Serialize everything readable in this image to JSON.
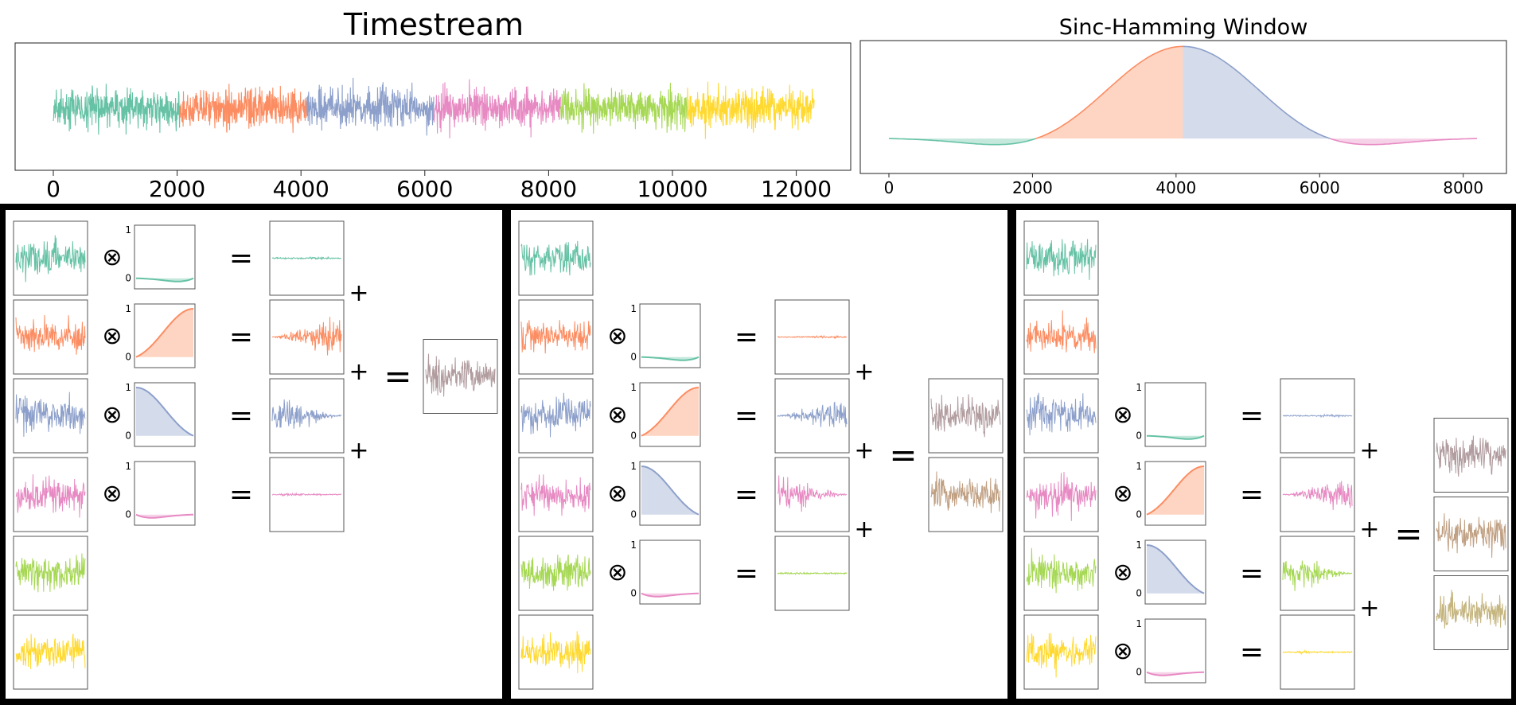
{
  "colors": {
    "segments": [
      "#66c2a5",
      "#fc8d62",
      "#8da0cb",
      "#e78ac3",
      "#a6d854",
      "#ffd92f"
    ],
    "sums": [
      "#b19c9f",
      "#c0a083",
      "#c5b57f"
    ],
    "frame": "#000000",
    "axis": "#333333"
  },
  "symbols": {
    "multiply": "⊗",
    "equals": "=",
    "plus": "+"
  },
  "chart_data": [
    {
      "type": "line",
      "title": "Timestream",
      "xlabel": "",
      "ylabel": "",
      "xlim": [
        0,
        12288
      ],
      "xticks": [
        "0",
        "2000",
        "4000",
        "6000",
        "8000",
        "10000",
        "12000"
      ],
      "xtick_values": [
        0,
        2000,
        4000,
        6000,
        8000,
        10000,
        12000
      ],
      "series": [
        {
          "x_range": [
            0,
            2048
          ],
          "amplitude": 1.0
        },
        {
          "x_range": [
            2048,
            4096
          ],
          "amplitude": 1.0
        },
        {
          "x_range": [
            4096,
            6144
          ],
          "amplitude": 1.0
        },
        {
          "x_range": [
            6144,
            8192
          ],
          "amplitude": 1.0
        },
        {
          "x_range": [
            8192,
            10240
          ],
          "amplitude": 1.0
        },
        {
          "x_range": [
            10240,
            12288
          ],
          "amplitude": 1.0
        }
      ]
    },
    {
      "type": "area",
      "title": "Sinc-Hamming Window",
      "xlabel": "",
      "ylabel": "",
      "xlim": [
        0,
        8192
      ],
      "ylim": [
        -0.12,
        1.0
      ],
      "xticks": [
        "0",
        "2000",
        "4000",
        "6000",
        "8000"
      ],
      "xtick_values": [
        0,
        2000,
        4000,
        6000,
        8000
      ],
      "quarters": [
        {
          "x_range": [
            0,
            2048
          ],
          "segment": 0
        },
        {
          "x_range": [
            2048,
            4096
          ],
          "segment": 1
        },
        {
          "x_range": [
            4096,
            6144
          ],
          "segment": 2
        },
        {
          "x_range": [
            6144,
            8192
          ],
          "segment": 3
        }
      ]
    }
  ],
  "panels": [
    {
      "offset": 0,
      "sum_colors": [
        0
      ],
      "window_ticks": [
        "0",
        "1"
      ]
    },
    {
      "offset": 1,
      "sum_colors": [
        0,
        1
      ],
      "window_ticks": [
        "0",
        "1"
      ]
    },
    {
      "offset": 2,
      "sum_colors": [
        0,
        1,
        2
      ],
      "window_ticks": [
        "0",
        "1"
      ]
    }
  ]
}
